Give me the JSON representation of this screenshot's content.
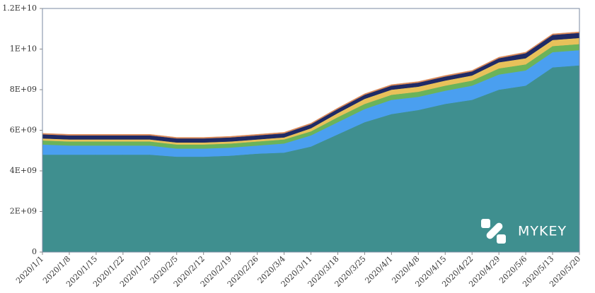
{
  "chart_data": {
    "type": "area",
    "stacked": true,
    "watermark": "MYKEY",
    "categories": [
      "2020/1/1",
      "2020/1/8",
      "2020/1/15",
      "2020/1/22",
      "2020/1/29",
      "2020/2/5",
      "2020/2/12",
      "2020/2/19",
      "2020/2/26",
      "2020/3/4",
      "2020/3/11",
      "2020/3/18",
      "2020/3/25",
      "2020/4/1",
      "2020/4/8",
      "2020/4/15",
      "2020/4/22",
      "2020/4/29",
      "2020/5/6",
      "2020/5/13",
      "2020/5/20"
    ],
    "series": [
      {
        "color": "#3f8f8f",
        "values": [
          4800000000.0,
          4800000000.0,
          4800000000.0,
          4800000000.0,
          4800000000.0,
          4700000000.0,
          4700000000.0,
          4750000000.0,
          4850000000.0,
          4900000000.0,
          5200000000.0,
          5800000000.0,
          6400000000.0,
          6800000000.0,
          7000000000.0,
          7300000000.0,
          7500000000.0,
          8000000000.0,
          8200000000.0,
          9100000000.0,
          9200000000.0
        ]
      },
      {
        "color": "#4a9ff0",
        "values": [
          500000000.0,
          450000000.0,
          450000000.0,
          450000000.0,
          450000000.0,
          400000000.0,
          400000000.0,
          400000000.0,
          400000000.0,
          450000000.0,
          550000000.0,
          600000000.0,
          650000000.0,
          700000000.0,
          650000000.0,
          650000000.0,
          700000000.0,
          750000000.0,
          750000000.0,
          750000000.0,
          750000000.0
        ]
      },
      {
        "color": "#6bb35a",
        "values": [
          200000000.0,
          200000000.0,
          200000000.0,
          200000000.0,
          200000000.0,
          200000000.0,
          200000000.0,
          200000000.0,
          200000000.0,
          200000000.0,
          200000000.0,
          250000000.0,
          250000000.0,
          250000000.0,
          250000000.0,
          250000000.0,
          250000000.0,
          300000000.0,
          300000000.0,
          300000000.0,
          300000000.0
        ]
      },
      {
        "color": "#e8c15a",
        "values": [
          100000000.0,
          100000000.0,
          100000000.0,
          100000000.0,
          100000000.0,
          100000000.0,
          100000000.0,
          100000000.0,
          100000000.0,
          100000000.0,
          150000000.0,
          200000000.0,
          250000000.0,
          250000000.0,
          250000000.0,
          250000000.0,
          250000000.0,
          300000000.0,
          300000000.0,
          300000000.0,
          300000000.0
        ]
      },
      {
        "color": "#1f2a66",
        "values": [
          200000000.0,
          200000000.0,
          200000000.0,
          200000000.0,
          200000000.0,
          200000000.0,
          200000000.0,
          200000000.0,
          200000000.0,
          200000000.0,
          200000000.0,
          200000000.0,
          200000000.0,
          200000000.0,
          200000000.0,
          200000000.0,
          200000000.0,
          200000000.0,
          250000000.0,
          250000000.0,
          250000000.0
        ]
      },
      {
        "color": "#d98a5a",
        "values": [
          50000000.0,
          50000000.0,
          50000000.0,
          50000000.0,
          50000000.0,
          50000000.0,
          50000000.0,
          50000000.0,
          50000000.0,
          50000000.0,
          50000000.0,
          50000000.0,
          50000000.0,
          50000000.0,
          50000000.0,
          50000000.0,
          50000000.0,
          50000000.0,
          50000000.0,
          50000000.0,
          50000000.0
        ]
      }
    ],
    "ylim": [
      0,
      12000000000
    ],
    "yticks": [
      0,
      {
        "value": 2000000000,
        "label": "2E+09"
      },
      {
        "value": 4000000000,
        "label": "4E+09"
      },
      {
        "value": 6000000000,
        "label": "6E+09"
      },
      {
        "value": 8000000000,
        "label": "8E+09"
      },
      {
        "value": 10000000000,
        "label": "1E+10"
      },
      {
        "value": 12000000000,
        "label": "1.2E+10"
      }
    ]
  }
}
